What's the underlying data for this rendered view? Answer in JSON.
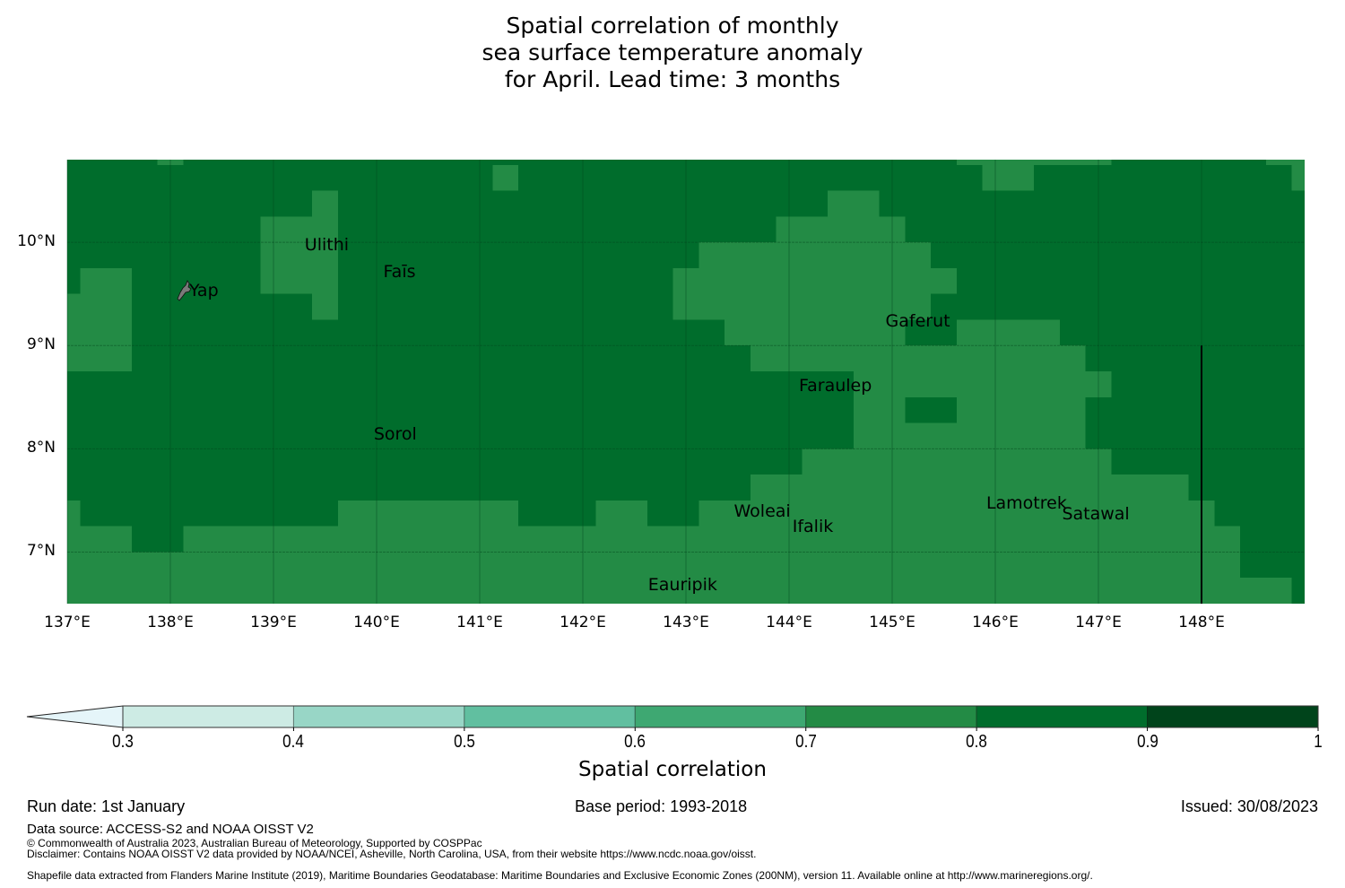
{
  "title_lines": [
    "Spatial correlation of monthly",
    "sea surface temperature anomaly",
    "for April. Lead time: 3 months"
  ],
  "chart_data": {
    "type": "heatmap",
    "title": "Spatial correlation of monthly sea surface temperature anomaly for April. Lead time: 3 months",
    "xlabel": "",
    "ylabel": "",
    "x_range_deg_e": [
      137.0,
      149.0
    ],
    "y_range_deg_n": [
      6.5,
      10.8
    ],
    "cell_size_deg": 0.25,
    "x_ticks": [
      "137°E",
      "138°E",
      "139°E",
      "140°E",
      "141°E",
      "142°E",
      "143°E",
      "144°E",
      "145°E",
      "146°E",
      "147°E",
      "148°E"
    ],
    "x_tick_values": [
      137,
      138,
      139,
      140,
      141,
      142,
      143,
      144,
      145,
      146,
      147,
      148
    ],
    "y_ticks": [
      "10°N",
      "9°N",
      "8°N",
      "7°N"
    ],
    "y_tick_values": [
      10,
      9,
      8,
      7
    ],
    "grid": true,
    "background_class": "0.8-0.9",
    "regions_note": "Regions listed as [lon_min, lon_max, lat_min, lat_max] with correlation class 0.7-0.8; all remaining ocean cells are class 0.8-0.9",
    "regions_0_7_to_0_8": [
      [
        137.875,
        138.125,
        10.75,
        10.8
      ],
      [
        141.125,
        141.375,
        10.5,
        10.75
      ],
      [
        139.375,
        139.625,
        9.25,
        10.5
      ],
      [
        138.875,
        139.625,
        9.5,
        10.25
      ],
      [
        139.625,
        139.625,
        9.5,
        9.5
      ],
      [
        139.375,
        139.625,
        9.5,
        10.25
      ],
      [
        139.625,
        139.625,
        9.5,
        9.5
      ],
      [
        137.125,
        137.625,
        9.5,
        9.75
      ],
      [
        137.0,
        137.625,
        8.75,
        9.5
      ],
      [
        145.625,
        147.125,
        10.75,
        10.8
      ],
      [
        145.875,
        146.375,
        10.5,
        10.75
      ],
      [
        148.625,
        149.0,
        10.75,
        10.8
      ],
      [
        148.875,
        149.0,
        10.5,
        10.75
      ],
      [
        144.375,
        144.875,
        10.25,
        10.5
      ],
      [
        143.875,
        145.125,
        10.0,
        10.25
      ],
      [
        143.125,
        145.375,
        9.75,
        10.0
      ],
      [
        142.875,
        145.625,
        9.5,
        9.75
      ],
      [
        142.875,
        145.375,
        9.25,
        9.5
      ],
      [
        143.375,
        145.125,
        9.0,
        9.25
      ],
      [
        145.625,
        146.625,
        9.0,
        9.25
      ],
      [
        143.625,
        146.875,
        8.75,
        9.0
      ],
      [
        144.625,
        147.125,
        8.5,
        8.75
      ],
      [
        144.625,
        145.125,
        8.25,
        8.5
      ],
      [
        145.625,
        146.875,
        8.25,
        8.5
      ],
      [
        144.625,
        146.875,
        8.0,
        8.25
      ],
      [
        144.125,
        147.125,
        7.75,
        8.0
      ],
      [
        143.625,
        147.875,
        7.5,
        7.75
      ],
      [
        137.0,
        137.125,
        7.25,
        7.5
      ],
      [
        139.625,
        141.375,
        7.25,
        7.5
      ],
      [
        142.125,
        142.625,
        7.25,
        7.5
      ],
      [
        143.125,
        148.125,
        7.25,
        7.5
      ],
      [
        137.0,
        137.625,
        7.0,
        7.25
      ],
      [
        138.125,
        148.375,
        7.0,
        7.25
      ],
      [
        137.0,
        148.375,
        6.75,
        7.0
      ],
      [
        137.0,
        148.875,
        6.5,
        6.75
      ]
    ],
    "eez_boundary": {
      "lon": 148.0,
      "lat_from": 6.5,
      "lat_to": 9.0
    },
    "places": [
      {
        "name": "Ulithi",
        "lon": 139.72,
        "lat": 10.0
      },
      {
        "name": "Faīs",
        "lon": 140.5,
        "lat": 9.75
      },
      {
        "name": "Yap",
        "lon": 138.13,
        "lat": 9.53
      },
      {
        "name": "Gaferut",
        "lon": 145.37,
        "lat": 9.23
      },
      {
        "name": "Faraulep",
        "lon": 144.53,
        "lat": 8.6
      },
      {
        "name": "Sorol",
        "lon": 140.39,
        "lat": 8.13
      },
      {
        "name": "Woleai",
        "lon": 143.9,
        "lat": 7.37
      },
      {
        "name": "Ifalik",
        "lon": 144.45,
        "lat": 7.25
      },
      {
        "name": "Lamotrek",
        "lon": 146.33,
        "lat": 7.47
      },
      {
        "name": "Satawal",
        "lon": 147.03,
        "lat": 7.37
      },
      {
        "name": "Eauripik",
        "lon": 143.05,
        "lat": 6.68
      }
    ],
    "colorbar": {
      "label": "Spatial correlation",
      "ticks": [
        "0.3",
        "0.4",
        "0.5",
        "0.6",
        "0.7",
        "0.8",
        "0.9",
        "1"
      ],
      "bounds": [
        0.3,
        0.4,
        0.5,
        0.6,
        0.7,
        0.8,
        0.9,
        1.0
      ],
      "colors": [
        "#cdebe4",
        "#98d6c6",
        "#61bfa0",
        "#3ea872",
        "#238b45",
        "#006d2c",
        "#00441b"
      ],
      "extend_min_color": "#e5f5f9",
      "extend": "min"
    }
  },
  "colors": {
    "class_0_7_0_8": "#238b45",
    "class_0_8_0_9": "#006d2c",
    "gridline": "#00441b",
    "boundary": "#000000"
  },
  "footer": {
    "run_date": "Run date: 1st January",
    "base_period": "Base period: 1993-2018",
    "issued": "Issued: 30/08/2023",
    "data_source": "Data source: ACCESS-S2 and NOAA OISST V2",
    "copyright": "© Commonwealth of Australia 2023, Australian Bureau of Meteorology, Supported by COSPPac",
    "disclaimer": "Disclaimer: Contains NOAA OISST V2 data provided by NOAA/NCEI, Asheville, North Carolina, USA, from their website https://www.ncdc.noaa.gov/oisst.",
    "shapefile": "Shapefile data extracted from Flanders Marine Institute (2019), Maritime Boundaries Geodatabase: Maritime Boundaries and Exclusive Economic Zones (200NM), version 11. Available online at http://www.marineregions.org/."
  }
}
